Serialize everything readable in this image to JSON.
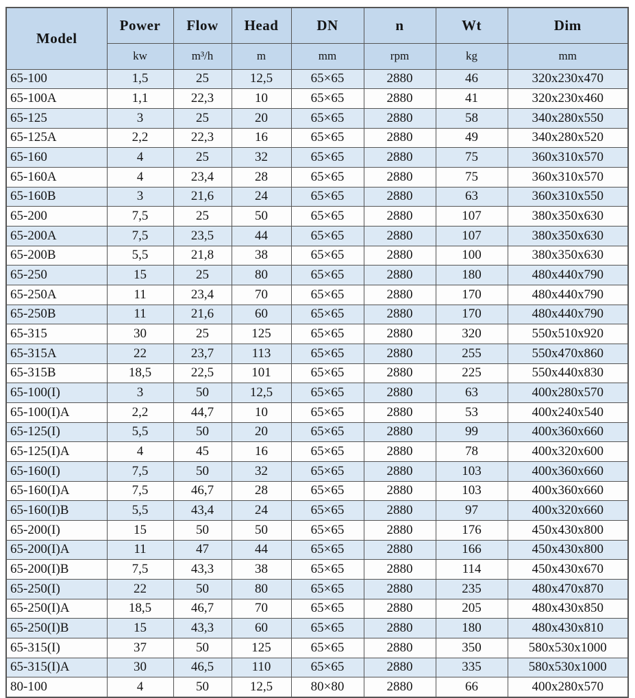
{
  "colors": {
    "header_fill": "#c3d8ed",
    "stripe_fill": "#dce9f5",
    "row_fill": "#fdfdfd",
    "border": "#545454",
    "text": "#151515"
  },
  "table": {
    "columns": [
      {
        "key": "model",
        "label": "Model",
        "unit": ""
      },
      {
        "key": "power",
        "label": "Power",
        "unit": "kw"
      },
      {
        "key": "flow",
        "label": "Flow",
        "unit": "m³/h"
      },
      {
        "key": "head",
        "label": "Head",
        "unit": "m"
      },
      {
        "key": "dn",
        "label": "DN",
        "unit": "mm"
      },
      {
        "key": "n",
        "label": "n",
        "unit": "rpm"
      },
      {
        "key": "wt",
        "label": "Wt",
        "unit": "kg"
      },
      {
        "key": "dim",
        "label": "Dim",
        "unit": "mm"
      }
    ],
    "rows": [
      [
        "65-100",
        "1,5",
        "25",
        "12,5",
        "65×65",
        "2880",
        "46",
        "320x230x470"
      ],
      [
        "65-100A",
        "1,1",
        "22,3",
        "10",
        "65×65",
        "2880",
        "41",
        "320x230x460"
      ],
      [
        "65-125",
        "3",
        "25",
        "20",
        "65×65",
        "2880",
        "58",
        "340x280x550"
      ],
      [
        "65-125A",
        "2,2",
        "22,3",
        "16",
        "65×65",
        "2880",
        "49",
        "340x280x520"
      ],
      [
        "65-160",
        "4",
        "25",
        "32",
        "65×65",
        "2880",
        "75",
        "360x310x570"
      ],
      [
        "65-160A",
        "4",
        "23,4",
        "28",
        "65×65",
        "2880",
        "75",
        "360x310x570"
      ],
      [
        "65-160B",
        "3",
        "21,6",
        "24",
        "65×65",
        "2880",
        "63",
        "360x310x550"
      ],
      [
        "65-200",
        "7,5",
        "25",
        "50",
        "65×65",
        "2880",
        "107",
        "380x350x630"
      ],
      [
        "65-200A",
        "7,5",
        "23,5",
        "44",
        "65×65",
        "2880",
        "107",
        "380x350x630"
      ],
      [
        "65-200B",
        "5,5",
        "21,8",
        "38",
        "65×65",
        "2880",
        "100",
        "380x350x630"
      ],
      [
        "65-250",
        "15",
        "25",
        "80",
        "65×65",
        "2880",
        "180",
        "480x440x790"
      ],
      [
        "65-250A",
        "11",
        "23,4",
        "70",
        "65×65",
        "2880",
        "170",
        "480x440x790"
      ],
      [
        "65-250B",
        "11",
        "21,6",
        "60",
        "65×65",
        "2880",
        "170",
        "480x440x790"
      ],
      [
        "65-315",
        "30",
        "25",
        "125",
        "65×65",
        "2880",
        "320",
        "550x510x920"
      ],
      [
        "65-315A",
        "22",
        "23,7",
        "113",
        "65×65",
        "2880",
        "255",
        "550x470x860"
      ],
      [
        "65-315B",
        "18,5",
        "22,5",
        "101",
        "65×65",
        "2880",
        "225",
        "550x440x830"
      ],
      [
        "65-100(I)",
        "3",
        "50",
        "12,5",
        "65×65",
        "2880",
        "63",
        "400x280x570"
      ],
      [
        "65-100(I)A",
        "2,2",
        "44,7",
        "10",
        "65×65",
        "2880",
        "53",
        "400x240x540"
      ],
      [
        "65-125(I)",
        "5,5",
        "50",
        "20",
        "65×65",
        "2880",
        "99",
        "400x360x660"
      ],
      [
        "65-125(I)A",
        "4",
        "45",
        "16",
        "65×65",
        "2880",
        "78",
        "400x320x600"
      ],
      [
        "65-160(I)",
        "7,5",
        "50",
        "32",
        "65×65",
        "2880",
        "103",
        "400x360x660"
      ],
      [
        "65-160(I)A",
        "7,5",
        "46,7",
        "28",
        "65×65",
        "2880",
        "103",
        "400x360x660"
      ],
      [
        "65-160(I)B",
        "5,5",
        "43,4",
        "24",
        "65×65",
        "2880",
        "97",
        "400x320x660"
      ],
      [
        "65-200(I)",
        "15",
        "50",
        "50",
        "65×65",
        "2880",
        "176",
        "450x430x800"
      ],
      [
        "65-200(I)A",
        "11",
        "47",
        "44",
        "65×65",
        "2880",
        "166",
        "450x430x800"
      ],
      [
        "65-200(I)B",
        "7,5",
        "43,3",
        "38",
        "65×65",
        "2880",
        "114",
        "450x430x670"
      ],
      [
        "65-250(I)",
        "22",
        "50",
        "80",
        "65×65",
        "2880",
        "235",
        "480x470x870"
      ],
      [
        "65-250(I)A",
        "18,5",
        "46,7",
        "70",
        "65×65",
        "2880",
        "205",
        "480x430x850"
      ],
      [
        "65-250(I)B",
        "15",
        "43,3",
        "60",
        "65×65",
        "2880",
        "180",
        "480x430x810"
      ],
      [
        "65-315(I)",
        "37",
        "50",
        "125",
        "65×65",
        "2880",
        "350",
        "580x530x1000"
      ],
      [
        "65-315(I)A",
        "30",
        "46,5",
        "110",
        "65×65",
        "2880",
        "335",
        "580x530x1000"
      ],
      [
        "80-100",
        "4",
        "50",
        "12,5",
        "80×80",
        "2880",
        "66",
        "400x280x570"
      ]
    ]
  }
}
